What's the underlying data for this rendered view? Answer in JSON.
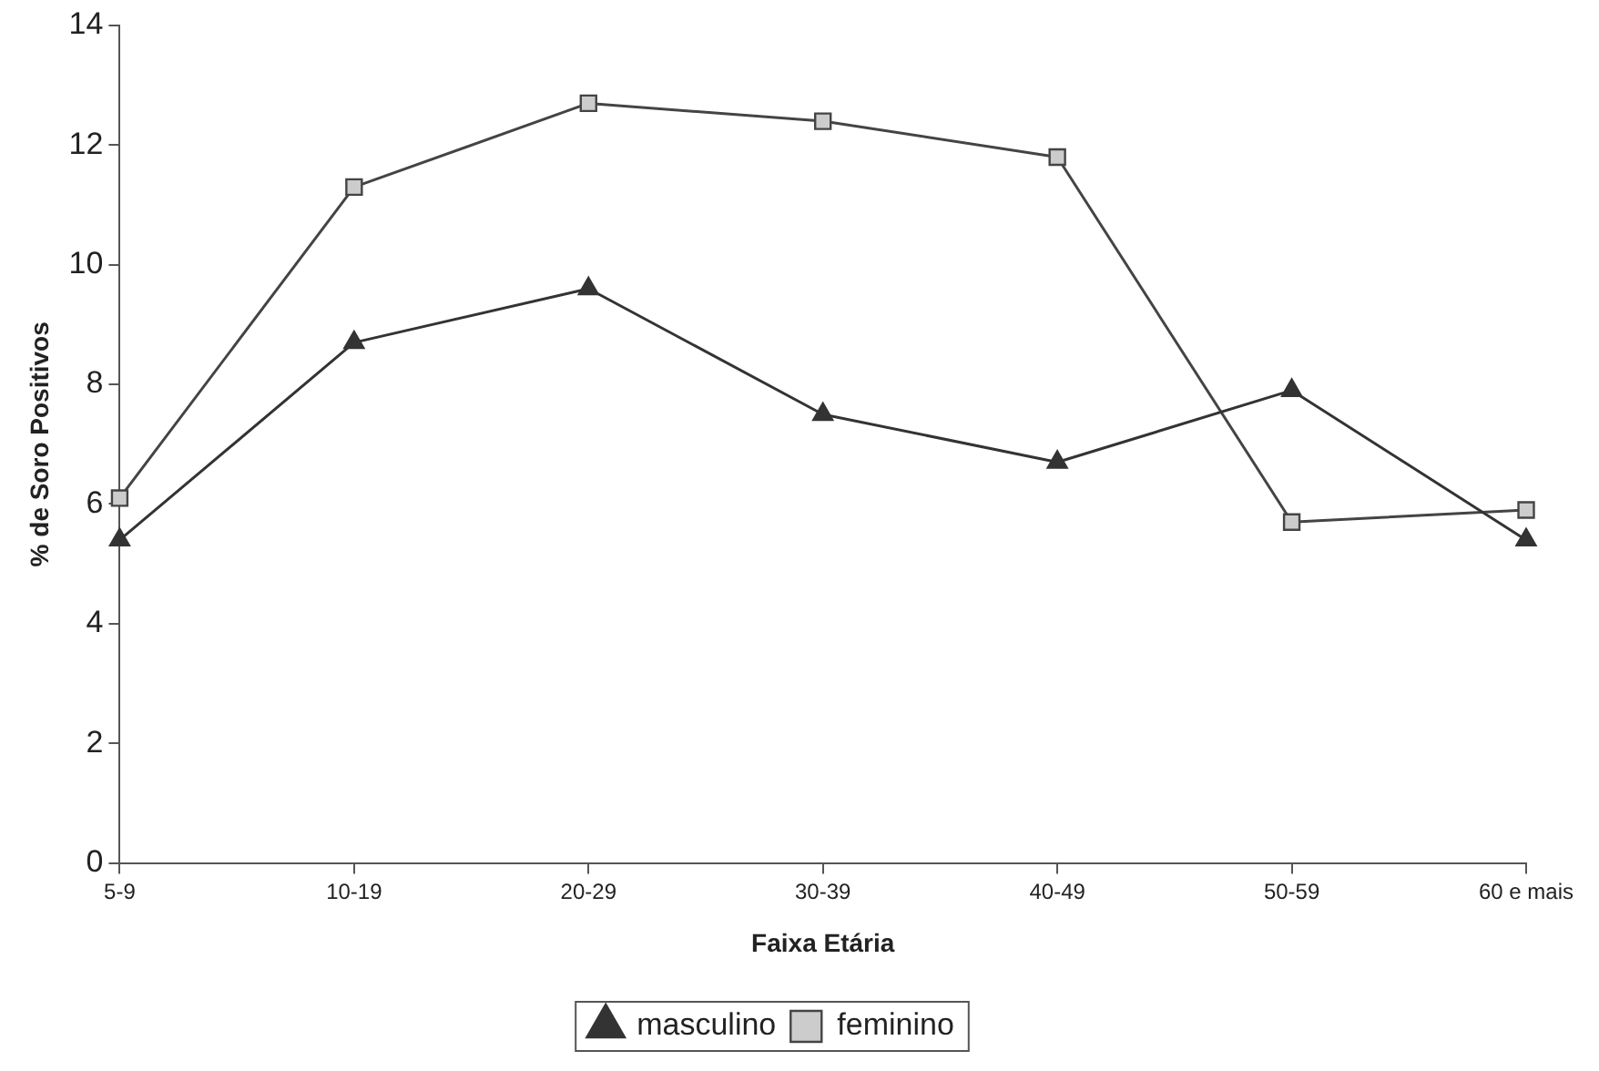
{
  "chart_data": {
    "type": "line",
    "xlabel": "Faixa Etária",
    "ylabel": "% de Soro Positivos",
    "categories": [
      "5-9",
      "10-19",
      "20-29",
      "30-39",
      "40-49",
      "50-59",
      "60 e mais"
    ],
    "series": [
      {
        "name": "masculino",
        "color": "#333333",
        "marker": "triangle",
        "values": [
          5.4,
          8.7,
          9.6,
          7.5,
          6.7,
          7.9,
          5.4
        ]
      },
      {
        "name": "feminino",
        "color": "#444444",
        "marker": "square",
        "values": [
          6.1,
          11.3,
          12.7,
          12.4,
          11.8,
          5.7,
          5.9
        ]
      }
    ],
    "ylim": [
      0,
      14
    ],
    "yticks": [
      0,
      2,
      4,
      6,
      8,
      10,
      12,
      14
    ],
    "grid": false,
    "legend": "bottom",
    "line_style": "solid"
  }
}
